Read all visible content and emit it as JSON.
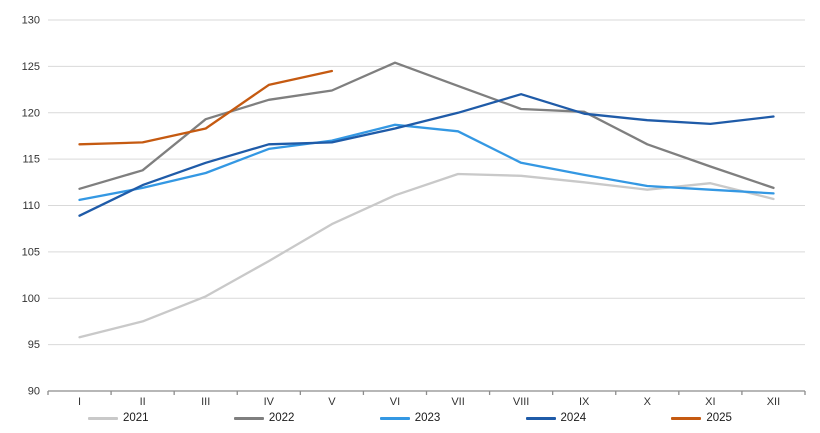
{
  "chart_data": {
    "type": "line",
    "title": "",
    "x_categories": [
      "I",
      "II",
      "III",
      "IV",
      "V",
      "VI",
      "VII",
      "VIII",
      "IX",
      "X",
      "XI",
      "XII"
    ],
    "y_ticks": [
      90,
      95,
      100,
      105,
      110,
      115,
      120,
      125,
      130
    ],
    "ylim": [
      90,
      130
    ],
    "grid": "horizontal",
    "legend_position": "bottom",
    "series": [
      {
        "name": "2021",
        "color": "#c9c9c9",
        "values": [
          95.8,
          97.5,
          100.2,
          104.0,
          108.0,
          111.1,
          113.4,
          113.2,
          112.5,
          111.7,
          112.4,
          110.7
        ]
      },
      {
        "name": "2022",
        "color": "#7f7f7f",
        "values": [
          111.8,
          113.8,
          119.3,
          121.4,
          122.4,
          125.4,
          122.9,
          120.4,
          120.1,
          116.6,
          114.2,
          111.9
        ]
      },
      {
        "name": "2023",
        "color": "#3498e3",
        "values": [
          110.6,
          111.9,
          113.5,
          116.1,
          117.0,
          118.7,
          118.0,
          114.6,
          113.3,
          112.1,
          111.7,
          111.3
        ]
      },
      {
        "name": "2024",
        "color": "#1f5ba8",
        "values": [
          108.9,
          112.2,
          114.6,
          116.6,
          116.8,
          118.3,
          120.0,
          122.0,
          119.9,
          119.2,
          118.8,
          119.6
        ]
      },
      {
        "name": "2025",
        "color": "#c55a11",
        "values": [
          116.6,
          116.8,
          118.3,
          123.0,
          124.5
        ]
      }
    ]
  },
  "colors": {
    "background": "#ffffff",
    "gridline": "#d9d9d9",
    "axis": "#8c8c8c",
    "tick_label": "#333333"
  }
}
